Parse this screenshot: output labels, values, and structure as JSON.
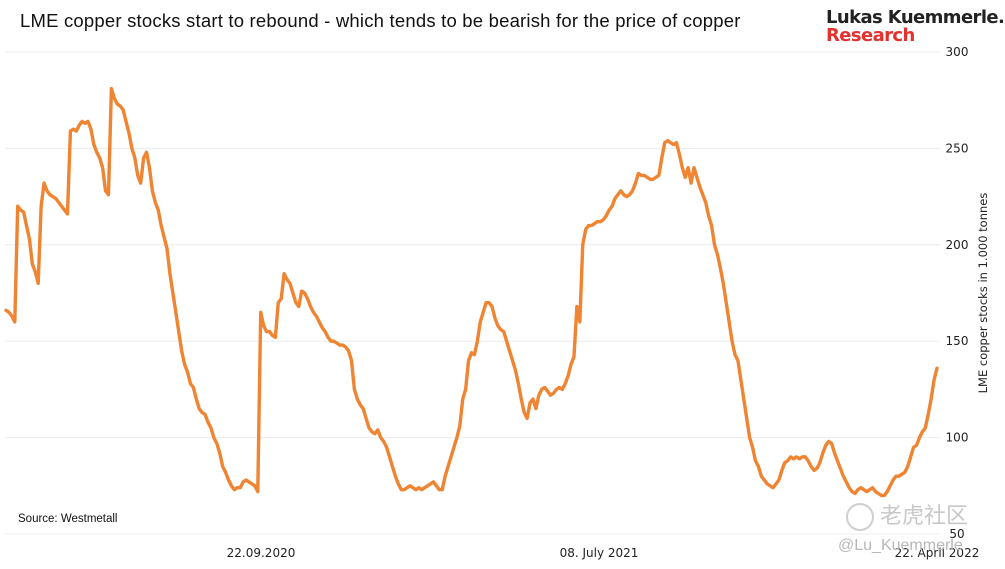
{
  "chart_data": {
    "type": "line",
    "title": "LME copper stocks start to rebound - which tends to be bearish for the price of copper",
    "ylabel": "LME copper stocks in 1.000 tonnes",
    "ylim": [
      50,
      300
    ],
    "yticks": [
      "300",
      "250",
      "200",
      "150",
      "100",
      "50"
    ],
    "xtick_labels": [
      "22.09.2020",
      "08. July 2021",
      "22. April 2022"
    ],
    "grid": true,
    "line_color": "#ef8432",
    "series": [
      {
        "values": [
          166,
          165,
          163,
          160,
          220,
          218,
          217,
          210,
          203,
          190,
          186,
          180,
          220,
          232,
          228,
          226,
          225,
          224,
          222,
          220,
          218,
          216,
          259,
          260,
          259,
          262,
          264,
          263,
          264,
          260,
          252,
          248,
          245,
          240,
          228,
          226,
          281,
          276,
          273,
          272,
          270,
          264,
          258,
          250,
          245,
          236,
          232,
          245,
          248,
          240,
          228,
          222,
          218,
          210,
          204,
          198,
          185,
          175,
          165,
          155,
          145,
          138,
          134,
          128,
          126,
          120,
          115,
          113,
          112,
          108,
          105,
          100,
          97,
          92,
          85,
          82,
          78,
          75,
          73,
          74,
          74,
          77,
          78,
          77,
          76,
          75,
          72,
          165,
          158,
          155,
          155,
          153,
          152,
          170,
          172,
          185,
          182,
          180,
          175,
          170,
          168,
          176,
          175,
          172,
          168,
          165,
          163,
          160,
          157,
          155,
          152,
          150,
          150,
          149,
          148,
          148,
          147,
          145,
          140,
          125,
          120,
          117,
          115,
          110,
          105,
          103,
          102,
          104,
          100,
          98,
          95,
          90,
          85,
          80,
          76,
          73,
          73,
          74,
          75,
          74,
          73,
          74,
          73,
          74,
          75,
          76,
          77,
          75,
          73,
          73,
          80,
          85,
          90,
          95,
          100,
          106,
          120,
          125,
          140,
          144,
          143,
          150,
          160,
          165,
          170,
          170,
          168,
          162,
          158,
          156,
          155,
          150,
          145,
          140,
          135,
          128,
          120,
          113,
          110,
          118,
          120,
          115,
          122,
          125,
          126,
          124,
          122,
          123,
          125,
          126,
          125,
          128,
          132,
          138,
          142,
          168,
          160,
          200,
          208,
          210,
          210,
          211,
          212,
          212,
          213,
          215,
          218,
          220,
          224,
          226,
          228,
          226,
          225,
          226,
          228,
          232,
          237,
          236,
          236,
          235,
          234,
          234,
          235,
          236,
          245,
          253,
          254,
          253,
          252,
          253,
          247,
          240,
          235,
          240,
          232,
          240,
          235,
          230,
          226,
          222,
          215,
          210,
          200,
          195,
          188,
          180,
          170,
          160,
          150,
          143,
          140,
          130,
          120,
          110,
          100,
          95,
          88,
          85,
          80,
          78,
          76,
          75,
          74,
          76,
          78,
          83,
          87,
          88,
          90,
          89,
          90,
          89,
          90,
          90,
          88,
          85,
          83,
          84,
          87,
          92,
          96,
          98,
          97,
          92,
          88,
          84,
          80,
          77,
          74,
          72,
          71,
          73,
          74,
          73,
          72,
          73,
          74,
          72,
          71,
          70,
          70,
          72,
          75,
          78,
          80,
          80,
          81,
          82,
          85,
          90,
          95,
          96,
          100,
          103,
          105,
          112,
          120,
          130,
          136
        ]
      }
    ]
  },
  "source": "Source: Westmetall",
  "brand": {
    "line1": "Lukas Kuemmerle.",
    "line2": "Research",
    "accent": "#e2322f"
  },
  "watermark": {
    "site": "老虎社区",
    "user": "@Lu_Kuemmerle"
  }
}
